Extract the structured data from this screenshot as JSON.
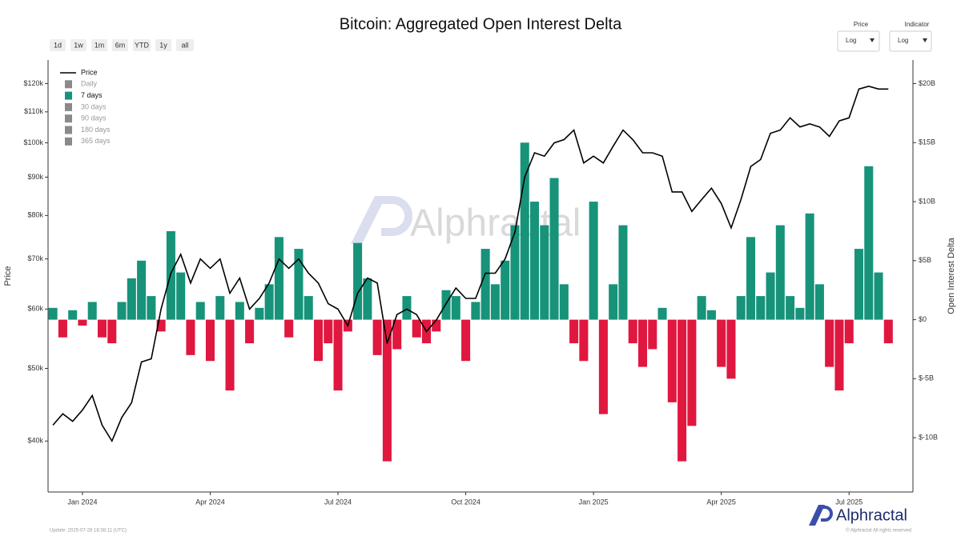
{
  "chart_data": {
    "type": "bar-line",
    "title": "Bitcoin: Aggregated Open Interest Delta",
    "y_label": "Price",
    "y2_label": "Open Interest Delta",
    "y_log": true,
    "categories": [
      null,
      null,
      null,
      "Jan 2024",
      null,
      null,
      null,
      null,
      null,
      null,
      null,
      null,
      null,
      null,
      null,
      null,
      "Apr 2024",
      null,
      null,
      null,
      null,
      null,
      null,
      null,
      null,
      null,
      null,
      null,
      null,
      "Jul 2024",
      null,
      null,
      null,
      null,
      null,
      null,
      null,
      null,
      null,
      null,
      null,
      null,
      "Oct 2024",
      null,
      null,
      null,
      null,
      null,
      null,
      null,
      null,
      null,
      null,
      null,
      null,
      "Jan 2025",
      null,
      null,
      null,
      null,
      null,
      null,
      null,
      null,
      null,
      null,
      null,
      null,
      "Apr 2025",
      null,
      null,
      null,
      null,
      null,
      null,
      null,
      null,
      null,
      null,
      null,
      null,
      "Jul 2025",
      null,
      null,
      null,
      null
    ],
    "ylim": [
      34200,
      129000
    ],
    "yticks": [
      {
        "value": 40000,
        "label": "$40k"
      },
      {
        "value": 50000,
        "label": "$50k"
      },
      {
        "value": 60000,
        "label": "$60k"
      },
      {
        "value": 70000,
        "label": "$70k"
      },
      {
        "value": 80000,
        "label": "$80k"
      },
      {
        "value": 90000,
        "label": "$90k"
      },
      {
        "value": 100000,
        "label": "$100k"
      },
      {
        "value": 110000,
        "label": "$110k"
      },
      {
        "value": 120000,
        "label": "$120k"
      }
    ],
    "y2lim": [
      -14.6,
      22
    ],
    "y2ticks": [
      {
        "value": -10,
        "label": "$-10B"
      },
      {
        "value": -5,
        "label": "$-5B"
      },
      {
        "value": 0,
        "label": "$0"
      },
      {
        "value": 5,
        "label": "$5B"
      },
      {
        "value": 10,
        "label": "$10B"
      },
      {
        "value": 15,
        "label": "$15B"
      },
      {
        "value": 20,
        "label": "$20B"
      }
    ],
    "legend": "top-left",
    "series": [
      {
        "name": "Price",
        "kind": "line",
        "axis": "y",
        "color": "#000000",
        "values": [
          42000,
          43500,
          42500,
          44000,
          46000,
          42000,
          40000,
          43000,
          45000,
          51000,
          51500,
          60000,
          67000,
          71000,
          65000,
          70000,
          68000,
          70000,
          63000,
          66000,
          60000,
          62000,
          65000,
          70000,
          68000,
          70000,
          67000,
          65000,
          61000,
          60000,
          57000,
          63000,
          66000,
          65000,
          54000,
          59000,
          60000,
          59000,
          56000,
          58000,
          61000,
          64000,
          62000,
          62000,
          67000,
          67000,
          70000,
          76000,
          90000,
          97000,
          96000,
          100000,
          101000,
          104000,
          94000,
          96000,
          94000,
          99000,
          104000,
          101000,
          97000,
          97000,
          96000,
          86000,
          86000,
          81000,
          84000,
          87000,
          83000,
          77000,
          84000,
          93000,
          95000,
          103000,
          104000,
          108000,
          105000,
          106000,
          105000,
          102000,
          107000,
          108000,
          118000,
          119000,
          118000,
          118000
        ]
      },
      {
        "name": "Daily",
        "kind": "hidden",
        "color": "#8a8a8a"
      },
      {
        "name": "7 days",
        "kind": "bar",
        "axis": "y2",
        "color": "#17937a",
        "negative_color": "#e0173f",
        "values": [
          1,
          -1.5,
          0.8,
          -0.5,
          1.5,
          -1.5,
          -2,
          1.5,
          3.5,
          5,
          2,
          -1,
          7.5,
          4,
          -3,
          1.5,
          -3.5,
          2,
          -6,
          1.5,
          -2,
          1,
          3,
          7,
          -1.5,
          6,
          2,
          -3.5,
          -2,
          -6,
          -1,
          6.5,
          3.5,
          -3,
          -12,
          -2.5,
          2,
          -1.5,
          -2,
          -1,
          2.5,
          2,
          -3.5,
          1.5,
          6,
          3,
          5,
          8,
          15,
          10,
          8,
          12,
          3,
          -2,
          -3.5,
          10,
          -8,
          3,
          8,
          -2,
          -4,
          -2.5,
          1,
          -7,
          -12,
          -9,
          2,
          0.8,
          -4,
          -5,
          2,
          7,
          2,
          4,
          8,
          2,
          1,
          9,
          3,
          -4,
          -6,
          -2,
          6,
          13,
          4,
          -2
        ]
      },
      {
        "name": "30 days",
        "kind": "hidden",
        "color": "#8a8a8a"
      },
      {
        "name": "90 days",
        "kind": "hidden",
        "color": "#8a8a8a"
      },
      {
        "name": "180 days",
        "kind": "hidden",
        "color": "#8a8a8a"
      },
      {
        "name": "365 days",
        "kind": "hidden",
        "color": "#8a8a8a"
      }
    ]
  },
  "controls": {
    "ranges": [
      "1d",
      "1w",
      "1m",
      "6m",
      "YTD",
      "1y",
      "all"
    ],
    "price_scale": {
      "label": "Price",
      "value": "Log"
    },
    "indicator_scale": {
      "label": "Indicator",
      "value": "Log"
    }
  },
  "watermark": "Alphractal",
  "footer": {
    "update": "Update: 2025-07-28 18:38:11 (UTC)",
    "brand": "Alphractal",
    "copyright": "© Alphractal All rights reserved"
  }
}
